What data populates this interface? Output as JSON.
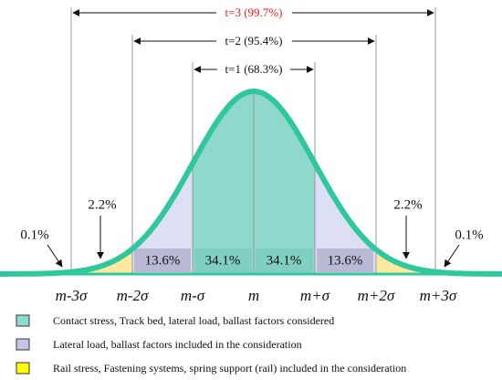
{
  "arrows": [
    {
      "label": "t=3 (99.7%)"
    },
    {
      "label": "t=2 (95.4%)"
    },
    {
      "label": "t=1 (68.3%)"
    }
  ],
  "percentages": {
    "left_tail": "0.1%",
    "left_2_3": "2.2%",
    "left_1_2": "13.6%",
    "left_0_1": "34.1%",
    "right_0_1": "34.1%",
    "right_1_2": "13.6%",
    "right_2_3": "2.2%",
    "right_tail": "0.1%"
  },
  "axis_labels": [
    "m-3σ",
    "m-2σ",
    "m-σ",
    "m",
    "m+σ",
    "m+2σ",
    "m+3σ"
  ],
  "legend": [
    {
      "text": "Contact stress, Track bed, lateral load, ballast factors considered"
    },
    {
      "text": "Lateral load, ballast factors included in the consideration"
    },
    {
      "text": "Rail stress, Fastening systems, spring support (rail) included in the consideration"
    }
  ]
}
